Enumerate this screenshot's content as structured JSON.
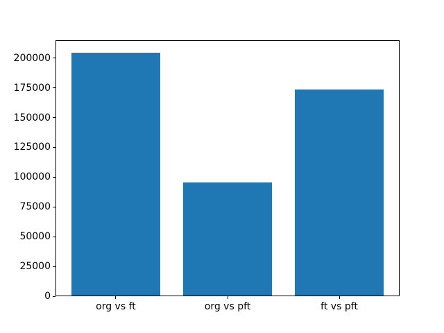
{
  "figure": {
    "background_color": "#ffffff",
    "title": ""
  },
  "chart_data": {
    "type": "bar",
    "title": "",
    "xlabel": "",
    "ylabel": "",
    "categories": [
      "org vs ft",
      "org vs pft",
      "ft vs pft"
    ],
    "values": [
      204800,
      95400,
      173400
    ],
    "yticks": [
      0,
      25000,
      50000,
      75000,
      100000,
      125000,
      150000,
      175000,
      200000
    ],
    "yticklabels": [
      "0",
      "25000",
      "50000",
      "75000",
      "100000",
      "125000",
      "150000",
      "175000",
      "200000"
    ],
    "ylim": [
      0,
      215000
    ],
    "xlim": [
      -0.54,
      2.54
    ],
    "bar_positions": [
      0,
      1,
      2
    ],
    "bar_width": 0.8,
    "bar_color": "#1f77b4",
    "axis_color": "#000000",
    "text_color": "#000000",
    "grid": false,
    "legend": null
  }
}
